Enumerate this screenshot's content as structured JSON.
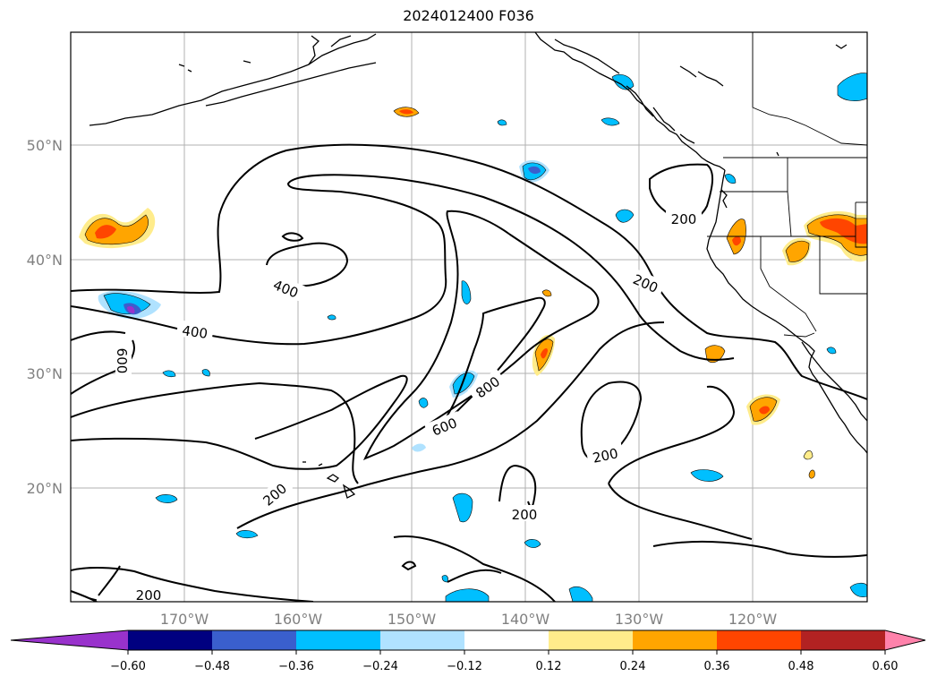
{
  "title": "2024012400 F036",
  "latitude_labels": [
    "50°N",
    "40°N",
    "30°N",
    "20°N"
  ],
  "longitude_labels": [
    "170°W",
    "160°W",
    "150°W",
    "140°W",
    "130°W",
    "120°W"
  ],
  "contour_labels": [
    "200",
    "200",
    "200",
    "200",
    "200",
    "200",
    "400",
    "400",
    "600",
    "600",
    "800"
  ],
  "colorbar": {
    "ticks": [
      "−0.60",
      "−0.48",
      "−0.36",
      "−0.24",
      "−0.12",
      "0.12",
      "0.24",
      "0.36",
      "0.48",
      "0.60"
    ],
    "colors": [
      "#9932cc",
      "#000080",
      "#3a5fcd",
      "#00bfff",
      "#b0e2ff",
      "#ffffff",
      "#ffec8b",
      "#ffa500",
      "#ff4500",
      "#b22222",
      "#ff82ab"
    ]
  }
}
